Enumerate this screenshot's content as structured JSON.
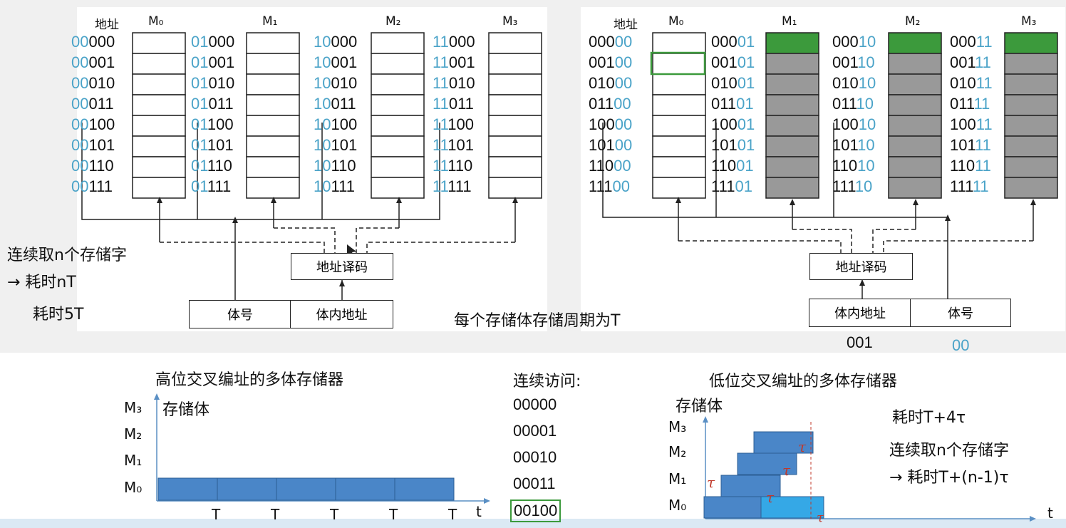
{
  "left_diagram": {
    "addr_header": "地址",
    "banks": [
      "M₀",
      "M₁",
      "M₂",
      "M₃"
    ],
    "bank_prefixes": [
      "00",
      "01",
      "10",
      "11"
    ],
    "in_bank_offsets": [
      "000",
      "001",
      "010",
      "011",
      "100",
      "101",
      "110",
      "111"
    ],
    "decoder_label": "地址译码",
    "field_labels": [
      "体号",
      "体内地址"
    ]
  },
  "right_diagram": {
    "addr_header": "地址",
    "banks": [
      "M₀",
      "M₁",
      "M₂",
      "M₃"
    ],
    "bank_suffixes": [
      "00",
      "01",
      "10",
      "11"
    ],
    "row_prefixes": [
      "000",
      "001",
      "010",
      "011",
      "100",
      "101",
      "110",
      "111"
    ],
    "decoder_label": "地址译码",
    "field_labels": [
      "体内地址",
      "体号"
    ],
    "field_values": [
      "001",
      "00"
    ]
  },
  "notes": {
    "left_line1": "连续取n个存储字",
    "left_line2": "→ 耗时nT",
    "left_line3": "耗时5T",
    "cycle_note": "每个存储体存储周期为T",
    "right_time": "耗时T+4τ",
    "right_line1": "连续取n个存储字",
    "right_line2": "→ 耗时T+(n-1)τ"
  },
  "high_chart": {
    "title": "高位交叉编址的多体存储器",
    "ylabel": "存储体",
    "xlabel": "t",
    "rows": [
      "M₃",
      "M₂",
      "M₁",
      "M₀"
    ],
    "tick_label": "T"
  },
  "sequence": {
    "title": "连续访问:",
    "items": [
      "00000",
      "00001",
      "00010",
      "00011",
      "00100"
    ]
  },
  "low_chart": {
    "title": "低位交叉编址的多体存储器",
    "ylabel": "存储体",
    "xlabel": "t",
    "rows": [
      "M₃",
      "M₂",
      "M₁",
      "M₀"
    ],
    "tau": "τ"
  },
  "colors": {
    "blue_bits": "#4aa3c8",
    "cell_gray": "#999999",
    "cell_green": "#3c9a3c",
    "bar_blue": "#4a86c8",
    "bar_light": "#35a8e6"
  },
  "chart_data": [
    {
      "type": "bar",
      "title": "高位交叉编址的多体存储器",
      "ylabel": "存储体",
      "xlabel": "t",
      "categories": [
        "M₀",
        "M₁",
        "M₂",
        "M₃"
      ],
      "series": [
        {
          "values": [
            5,
            0,
            0,
            0
          ]
        }
      ]
    },
    {
      "type": "bar",
      "title": "低位交叉编址的多体存储器",
      "ylabel": "存储体",
      "xlabel": "t",
      "categories": [
        "M₀",
        "M₁",
        "M₂",
        "M₃"
      ],
      "series": [
        {
          "values": [
            2,
            1,
            1,
            1
          ]
        }
      ]
    }
  ]
}
